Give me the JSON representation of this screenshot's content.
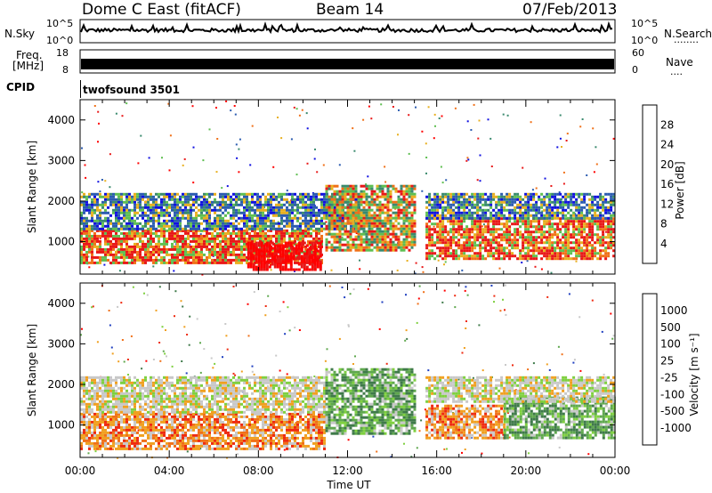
{
  "header": {
    "title": "Dome C East (fitACF)",
    "beam": "Beam 14",
    "date": "07/Feb/2013"
  },
  "noise_panel": {
    "left_label": "N.Sky",
    "right_label": "N.Search",
    "right_dots": "........",
    "left_ticks": [
      "10^5",
      "10^0"
    ],
    "right_ticks": [
      "10^5",
      "10^0"
    ]
  },
  "freq_panel": {
    "left_label_line1": "Freq.",
    "left_label_line2": "[MHz]",
    "right_label": "Nave",
    "right_dots": "....",
    "left_ticks": [
      "18",
      "8"
    ],
    "right_ticks": [
      "60",
      "0"
    ]
  },
  "cpid": {
    "label": "CPID",
    "value": "twofsound 3501"
  },
  "x_axis": {
    "label": "Time UT",
    "ticks": [
      "00:00",
      "04:00",
      "08:00",
      "12:00",
      "16:00",
      "20:00",
      "00:00"
    ]
  },
  "chart_data": [
    {
      "type": "heatmap",
      "name": "power",
      "ylabel": "Slant Range [km]",
      "yticks": [
        "1000",
        "2000",
        "3000",
        "4000"
      ],
      "ylim": [
        200,
        4500
      ],
      "xlim": [
        "00:00",
        "24:00"
      ],
      "colorbar": {
        "label": "Power [dB]",
        "ticks": [
          "4",
          "8",
          "12",
          "16",
          "20",
          "24",
          "28"
        ],
        "colors": [
          "#1010e0",
          "#2c5cb0",
          "#3a8a6e",
          "#5fbf52",
          "#e8b020",
          "#f07018",
          "#e81818",
          "#ff0000"
        ]
      },
      "regions": [
        {
          "t0": 0.0,
          "t1": 10.8,
          "r0": 500,
          "r1": 1300,
          "level": "high"
        },
        {
          "t0": 7.5,
          "t1": 10.8,
          "r0": 300,
          "r1": 1000,
          "level": "max"
        },
        {
          "t0": 0.0,
          "t1": 12.5,
          "r0": 1300,
          "r1": 2200,
          "level": "low"
        },
        {
          "t0": 11.0,
          "t1": 15.0,
          "r0": 800,
          "r1": 2400,
          "level": "mid"
        },
        {
          "t0": 15.5,
          "t1": 24.0,
          "r0": 600,
          "r1": 1600,
          "level": "high"
        },
        {
          "t0": 15.5,
          "t1": 24.0,
          "r0": 1600,
          "r1": 2200,
          "level": "low"
        }
      ]
    },
    {
      "type": "heatmap",
      "name": "velocity",
      "ylabel": "Slant Range [km]",
      "yticks": [
        "1000",
        "2000",
        "3000",
        "4000"
      ],
      "ylim": [
        200,
        4500
      ],
      "xlim": [
        "00:00",
        "24:00"
      ],
      "colorbar": {
        "label": "Velocity [m s⁻¹]",
        "ticks": [
          "1000",
          "500",
          "100",
          "25",
          "-25",
          "-100",
          "-500",
          "-1000"
        ],
        "colors": [
          "#2040c0",
          "#3f7a4a",
          "#5fa84e",
          "#7fd040",
          "#c8c8c8",
          "#f0a020",
          "#f07018",
          "#ee2a10",
          "#ff0000"
        ]
      },
      "regions": [
        {
          "t0": 0.0,
          "t1": 11.0,
          "r0": 400,
          "r1": 1300,
          "level": "toward"
        },
        {
          "t0": 0.0,
          "t1": 11.0,
          "r0": 1300,
          "r1": 2200,
          "level": "zero"
        },
        {
          "t0": 11.0,
          "t1": 15.0,
          "r0": 800,
          "r1": 2400,
          "level": "away"
        },
        {
          "t0": 15.5,
          "t1": 19.0,
          "r0": 700,
          "r1": 1500,
          "level": "toward"
        },
        {
          "t0": 19.0,
          "t1": 24.0,
          "r0": 700,
          "r1": 1700,
          "level": "away"
        },
        {
          "t0": 15.5,
          "t1": 24.0,
          "r0": 1600,
          "r1": 2200,
          "level": "zero"
        }
      ]
    }
  ]
}
